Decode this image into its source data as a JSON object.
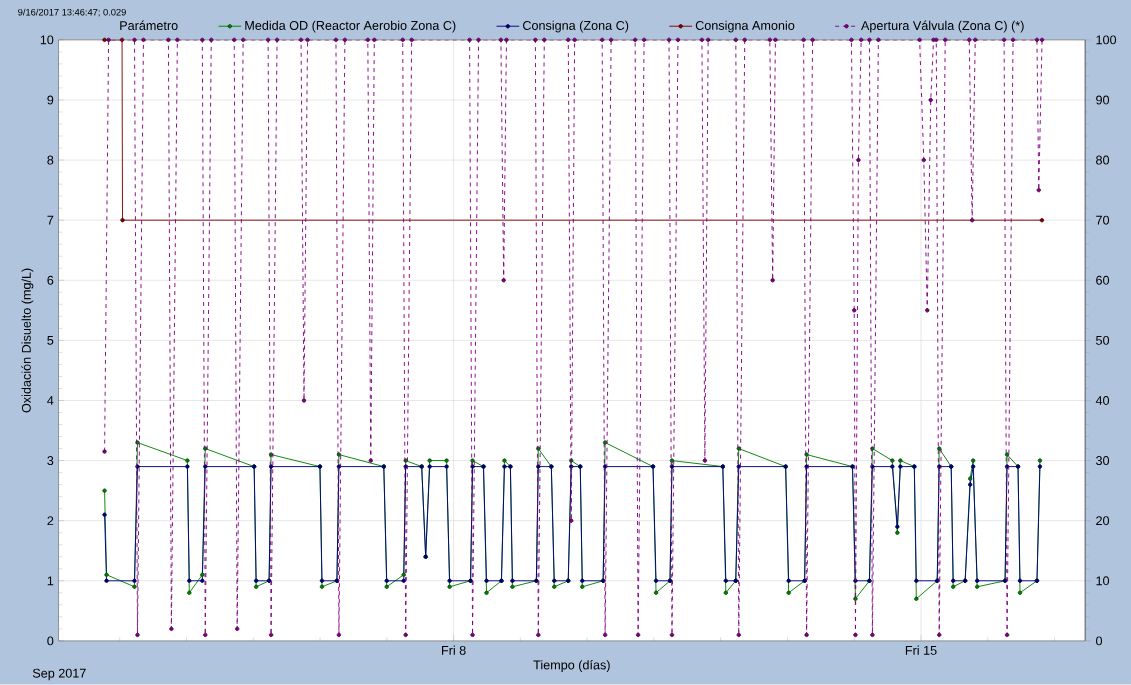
{
  "chart_data": {
    "type": "line",
    "annotations": [
      "9/16/2017 13:46:47; 0.029",
      "Sep 2017"
    ],
    "xlabel": "Tiempo (días)",
    "ylabel": "Oxidación Disuelto (mg/L)",
    "legend_title": "Parámetro",
    "legend": "top",
    "grid": true,
    "marker": "circle",
    "xlim": [
      "2017-09-02T02:00",
      "2017-09-17T11:00"
    ],
    "xticks": [
      {
        "value": "2017-09-03",
        "label": null
      },
      {
        "value": "2017-09-04",
        "label": null
      },
      {
        "value": "2017-09-05",
        "label": null
      },
      {
        "value": "2017-09-06",
        "label": null
      },
      {
        "value": "2017-09-07",
        "label": null
      },
      {
        "value": "2017-09-08",
        "label": "Fri 8"
      },
      {
        "value": "2017-09-09",
        "label": null
      },
      {
        "value": "2017-09-10",
        "label": null
      },
      {
        "value": "2017-09-11",
        "label": null
      },
      {
        "value": "2017-09-12",
        "label": null
      },
      {
        "value": "2017-09-13",
        "label": null
      },
      {
        "value": "2017-09-14",
        "label": null
      },
      {
        "value": "2017-09-15",
        "label": "Fri 15"
      },
      {
        "value": "2017-09-16",
        "label": null
      },
      {
        "value": "2017-09-17",
        "label": null
      }
    ],
    "ylim": [
      0,
      10
    ],
    "yticks": [
      0,
      1,
      2,
      3,
      4,
      5,
      6,
      7,
      8,
      9,
      10
    ],
    "y2lim": [
      0,
      100
    ],
    "y2ticks": [
      0,
      10,
      20,
      30,
      40,
      50,
      60,
      70,
      80,
      90,
      100
    ],
    "x": [
      "2017-09-02T18:33",
      "2017-09-02T19:16",
      "2017-09-03T05:18",
      "2017-09-03T06:23",
      "2017-09-04T00:19",
      "2017-09-04T01:00",
      "2017-09-04T05:41",
      "2017-09-04T06:45",
      "2017-09-05T00:19",
      "2017-09-05T01:02",
      "2017-09-05T05:41",
      "2017-09-05T06:24",
      "2017-09-05T23:58",
      "2017-09-06T00:42",
      "2017-09-06T06:04",
      "2017-09-06T06:47",
      "2017-09-06T22:55",
      "2017-09-06T23:58",
      "2017-09-07T06:04",
      "2017-09-07T06:47",
      "2017-09-07T12:32",
      "2017-09-07T13:58",
      "2017-09-07T15:24",
      "2017-09-07T21:29",
      "2017-09-07T22:34",
      "2017-09-08T06:06",
      "2017-09-08T06:49",
      "2017-09-08T10:45",
      "2017-09-08T11:50",
      "2017-09-08T17:12",
      "2017-09-08T18:17",
      "2017-09-08T20:25",
      "2017-09-08T21:09",
      "2017-09-09T05:45",
      "2017-09-09T06:27",
      "2017-09-09T11:08",
      "2017-09-09T12:11",
      "2017-09-09T17:12",
      "2017-09-09T18:17",
      "2017-09-09T21:32",
      "2017-09-09T22:15",
      "2017-09-10T05:45",
      "2017-09-10T06:28",
      "2017-09-10T23:41",
      "2017-09-11T00:46",
      "2017-09-11T05:47",
      "2017-09-11T06:30",
      "2017-09-12T00:46",
      "2017-09-12T01:51",
      "2017-09-12T05:25",
      "2017-09-12T06:30",
      "2017-09-12T23:21",
      "2017-09-13T00:26",
      "2017-09-13T06:10",
      "2017-09-13T06:53",
      "2017-09-13T23:23",
      "2017-09-14T00:26",
      "2017-09-14T05:28",
      "2017-09-14T06:32",
      "2017-09-14T13:42",
      "2017-09-14T15:30",
      "2017-09-14T16:35",
      "2017-09-14T21:36",
      "2017-09-14T22:19",
      "2017-09-15T05:50",
      "2017-09-15T06:33",
      "2017-09-15T10:51",
      "2017-09-15T11:34",
      "2017-09-15T15:52",
      "2017-09-15T17:40",
      "2017-09-15T18:45",
      "2017-09-15T20:11",
      "2017-09-16T06:13",
      "2017-09-16T06:56",
      "2017-09-16T10:52",
      "2017-09-16T11:35",
      "2017-09-16T17:41",
      "2017-09-16T18:45"
    ],
    "series": [
      {
        "name": "Medida OD (Reactor Aerobio Zona C)",
        "color": "#008000",
        "values": [
          2.5,
          1.1,
          0.9,
          3.3,
          3.0,
          0.8,
          1.1,
          3.2,
          2.9,
          0.9,
          1.0,
          3.1,
          2.9,
          0.9,
          1.0,
          3.1,
          2.9,
          0.9,
          1.1,
          3.0,
          2.9,
          1.4,
          3.0,
          3.0,
          0.9,
          1.0,
          3.0,
          2.9,
          0.8,
          1.0,
          3.0,
          2.9,
          0.9,
          1.0,
          3.2,
          2.9,
          0.9,
          1.0,
          3.0,
          2.9,
          0.9,
          1.0,
          3.3,
          2.9,
          0.8,
          1.0,
          3.0,
          2.9,
          0.8,
          1.0,
          3.2,
          2.9,
          0.8,
          1.0,
          3.1,
          2.9,
          0.7,
          1.0,
          3.2,
          3.0,
          1.8,
          3.0,
          2.9,
          0.7,
          1.0,
          3.2,
          2.9,
          0.9,
          1.0,
          2.7,
          3.0,
          0.9,
          1.0,
          3.1,
          2.9,
          0.8,
          1.0,
          3.0
        ]
      },
      {
        "name": "Consigna (Zona C)",
        "color": "#000080",
        "values": [
          2.1,
          1.0,
          1.0,
          2.9,
          2.9,
          1.0,
          1.0,
          2.9,
          2.9,
          1.0,
          1.0,
          2.9,
          2.9,
          1.0,
          1.0,
          2.9,
          2.9,
          1.0,
          1.0,
          2.9,
          2.9,
          1.4,
          2.9,
          2.9,
          1.0,
          1.0,
          2.9,
          2.9,
          1.0,
          1.0,
          2.9,
          2.9,
          1.0,
          1.0,
          2.9,
          2.9,
          1.0,
          1.0,
          2.9,
          2.9,
          1.0,
          1.0,
          2.9,
          2.9,
          1.0,
          1.0,
          2.9,
          2.9,
          1.0,
          1.0,
          2.9,
          2.9,
          1.0,
          1.0,
          2.9,
          2.9,
          1.0,
          1.0,
          2.9,
          2.9,
          1.9,
          2.9,
          2.9,
          1.0,
          1.0,
          2.9,
          2.9,
          1.0,
          1.0,
          2.6,
          2.9,
          1.0,
          1.0,
          2.9,
          2.9,
          1.0,
          1.0,
          2.9
        ]
      },
      {
        "name": "Consigna Amonio",
        "color": "#800000",
        "x": [
          "2017-09-02T18:33",
          "2017-09-03T00:50",
          "2017-09-03T01:00",
          "2017-09-16T19:28"
        ],
        "values": [
          10,
          10,
          7,
          7
        ]
      },
      {
        "name": "Apertura Válvula (Zona C) (*)",
        "color": "#800080",
        "axis": "y2",
        "line_style": "dashed",
        "x": [
          "2017-09-02T18:33",
          "2017-09-02T20:00",
          "2017-09-03T05:19",
          "2017-09-03T06:23",
          "2017-09-03T08:32",
          "2017-09-03T17:30",
          "2017-09-03T18:34",
          "2017-09-03T20:43",
          "2017-09-04T05:41",
          "2017-09-04T06:45",
          "2017-09-04T08:54",
          "2017-09-04T17:09",
          "2017-09-04T18:13",
          "2017-09-04T20:22",
          "2017-09-05T05:20",
          "2017-09-05T06:24",
          "2017-09-05T08:33",
          "2017-09-05T17:10",
          "2017-09-05T18:14",
          "2017-09-05T19:30",
          "2017-09-06T05:43",
          "2017-09-06T06:47",
          "2017-09-06T08:56",
          "2017-09-06T17:10",
          "2017-09-06T18:14",
          "2017-09-06T19:30",
          "2017-09-07T05:43",
          "2017-09-07T06:47",
          "2017-09-07T08:56",
          "2017-09-08T05:45",
          "2017-09-08T06:49",
          "2017-09-08T08:58",
          "2017-09-08T17:00",
          "2017-09-08T18:00",
          "2017-09-08T19:00",
          "2017-09-09T05:23",
          "2017-09-09T06:27",
          "2017-09-09T08:36",
          "2017-09-09T17:13",
          "2017-09-09T18:17",
          "2017-09-09T19:30",
          "2017-09-10T05:24",
          "2017-09-10T06:28",
          "2017-09-10T08:37",
          "2017-09-10T17:15",
          "2017-09-10T18:19",
          "2017-09-10T20:28",
          "2017-09-11T05:26",
          "2017-09-11T06:30",
          "2017-09-11T08:39",
          "2017-09-11T17:15",
          "2017-09-11T18:19",
          "2017-09-11T19:30",
          "2017-09-12T05:26",
          "2017-09-12T06:30",
          "2017-09-12T08:39",
          "2017-09-12T17:40",
          "2017-09-12T18:41",
          "2017-09-12T19:40",
          "2017-09-13T05:49",
          "2017-09-13T06:53",
          "2017-09-13T09:02",
          "2017-09-13T23:00",
          "2017-09-14T00:00",
          "2017-09-14T00:26",
          "2017-09-14T01:30",
          "2017-09-14T02:30",
          "2017-09-14T05:28",
          "2017-09-14T06:32",
          "2017-09-14T08:41",
          "2017-09-14T23:30",
          "2017-09-15T01:00",
          "2017-09-15T02:15",
          "2017-09-15T03:30",
          "2017-09-15T04:30",
          "2017-09-15T05:29",
          "2017-09-15T06:33",
          "2017-09-15T08:42",
          "2017-09-15T17:20",
          "2017-09-15T18:23",
          "2017-09-15T19:30",
          "2017-09-16T05:52",
          "2017-09-16T06:56",
          "2017-09-16T09:05",
          "2017-09-16T17:40",
          "2017-09-16T18:20",
          "2017-09-16T19:30"
        ],
        "values": [
          31.5,
          100,
          100,
          1,
          100,
          100,
          2,
          100,
          100,
          1,
          100,
          100,
          2,
          100,
          100,
          1,
          100,
          100,
          40,
          100,
          100,
          1,
          100,
          100,
          30,
          100,
          100,
          1,
          100,
          100,
          1,
          100,
          100,
          60,
          100,
          100,
          1,
          100,
          100,
          20,
          100,
          100,
          1,
          100,
          100,
          1,
          100,
          100,
          1,
          100,
          100,
          30,
          100,
          100,
          1,
          100,
          100,
          60,
          100,
          100,
          1,
          100,
          100,
          55,
          1,
          80,
          100,
          100,
          1,
          100,
          100,
          80,
          55,
          90,
          100,
          100,
          1,
          100,
          100,
          70,
          100,
          100,
          1,
          100,
          100,
          75,
          100
        ]
      }
    ]
  }
}
